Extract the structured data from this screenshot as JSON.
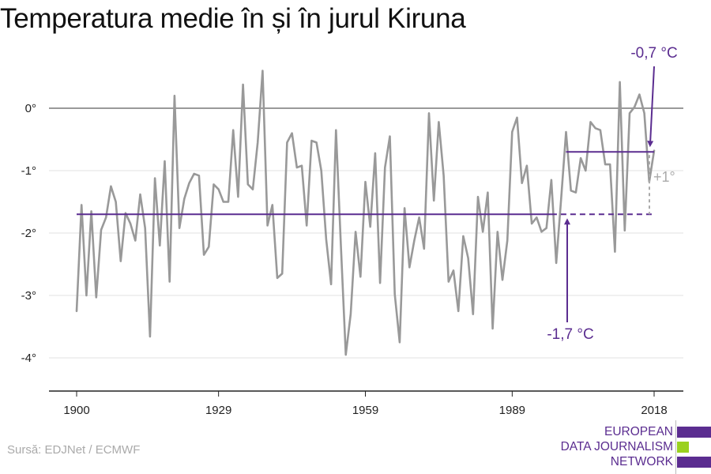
{
  "title": "Temperatura medie în și în jurul Kiruna",
  "source": "Sursă: EDJNet / ECMWF",
  "logo": {
    "lines": [
      "EUROPEAN",
      "DATA JOURNALISM",
      "NETWORK"
    ],
    "colors": [
      "#5b2d90",
      "#9ad11f",
      "#5b2d90"
    ]
  },
  "chart_data": {
    "type": "line",
    "title": "Temperatura medie în și în jurul Kiruna",
    "xlabel": "",
    "ylabel": "",
    "xlim": [
      1900,
      2018
    ],
    "ylim": [
      -4.5,
      0.9
    ],
    "x_ticks": [
      1900,
      1929,
      1959,
      1989,
      2018
    ],
    "y_ticks": [
      0,
      -1,
      -2,
      -3,
      -4
    ],
    "y_tick_labels": [
      "0°",
      "-1°",
      "-2°",
      "-3°",
      "-4°"
    ],
    "grid": true,
    "x_start": 1900,
    "series": [
      {
        "color": "#999999",
        "values": [
          -3.25,
          -1.55,
          -3.0,
          -1.65,
          -3.03,
          -1.95,
          -1.75,
          -1.25,
          -1.5,
          -2.45,
          -1.68,
          -1.85,
          -2.12,
          -1.38,
          -1.92,
          -3.66,
          -1.12,
          -2.2,
          -0.85,
          -2.78,
          0.2,
          -1.92,
          -1.45,
          -1.2,
          -1.05,
          -1.08,
          -2.35,
          -2.22,
          -1.22,
          -1.3,
          -1.5,
          -1.5,
          -0.35,
          -1.42,
          0.38,
          -1.22,
          -1.3,
          -0.55,
          0.6,
          -1.88,
          -1.55,
          -2.72,
          -2.65,
          -0.55,
          -0.4,
          -0.95,
          -0.92,
          -1.88,
          -0.52,
          -0.55,
          -1.0,
          -2.1,
          -2.82,
          -0.35,
          -2.2,
          -3.95,
          -3.3,
          -1.98,
          -2.7,
          -1.18,
          -1.9,
          -0.72,
          -2.8,
          -0.95,
          -0.45,
          -2.98,
          -3.75,
          -1.6,
          -2.55,
          -2.12,
          -1.75,
          -2.25,
          -0.08,
          -1.48,
          -0.22,
          -1.08,
          -2.78,
          -2.6,
          -3.25,
          -2.05,
          -2.4,
          -3.3,
          -1.42,
          -1.98,
          -1.35,
          -3.53,
          -1.98,
          -2.75,
          -2.12,
          -0.38,
          -0.15,
          -1.2,
          -0.92,
          -1.85,
          -1.75,
          -1.98,
          -1.92,
          -1.15,
          -2.48,
          -1.45,
          -0.38,
          -1.32,
          -1.35,
          -0.8,
          -1.0,
          -0.22,
          -0.32,
          -0.35,
          -0.9,
          -0.9,
          -2.3,
          0.42,
          -1.96,
          -0.08,
          0.02,
          0.22,
          -0.08,
          -1.18,
          -0.68
        ]
      }
    ],
    "reference_lines": [
      {
        "label": "-1,7 °C",
        "value": -1.7,
        "from": 1900,
        "to": 2018,
        "solid_to": 1997,
        "color": "#5b2d90"
      },
      {
        "label": "-0,7 °C",
        "value": -0.7,
        "from": 2000,
        "to": 2018,
        "color": "#5b2d90"
      }
    ],
    "difference_label": "+1°",
    "difference_color": "#aaaaaa"
  }
}
